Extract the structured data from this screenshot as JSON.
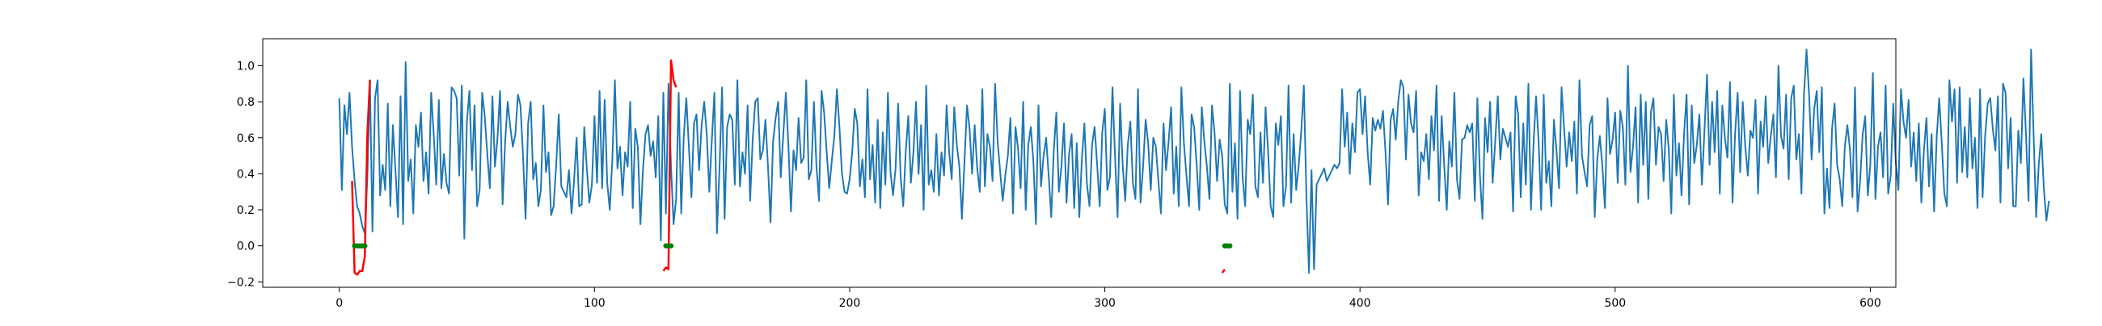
{
  "chart_data": {
    "type": "line",
    "title": "",
    "xlabel": "",
    "ylabel": "",
    "xlim": [
      -30,
      610
    ],
    "ylim": [
      -0.23,
      1.15
    ],
    "grid": false,
    "legend": "none",
    "x_ticks": [
      0,
      100,
      200,
      300,
      400,
      500,
      600
    ],
    "y_ticks": [
      -0.2,
      0.0,
      0.2,
      0.4,
      0.6,
      0.8,
      1.0
    ],
    "x_tick_labels": [
      "0",
      "100",
      "200",
      "300",
      "400",
      "500",
      "600"
    ],
    "y_tick_labels": [
      "−0.2",
      "0.0",
      "0.2",
      "0.4",
      "0.6",
      "0.8",
      "1.0"
    ],
    "series": [
      {
        "color": "#1f77b4",
        "x_start": 0,
        "x_step": 1,
        "values": [
          0.82,
          0.31,
          0.78,
          0.62,
          0.85,
          0.55,
          0.36,
          0.22,
          0.18,
          0.11,
          0.07,
          0.38,
          0.92,
          0.08,
          0.82,
          0.92,
          0.28,
          0.45,
          0.31,
          0.79,
          0.22,
          0.67,
          0.42,
          0.16,
          0.83,
          0.12,
          1.02,
          0.36,
          0.48,
          0.18,
          0.67,
          0.55,
          0.74,
          0.36,
          0.52,
          0.29,
          0.85,
          0.62,
          0.34,
          0.81,
          0.32,
          0.51,
          0.35,
          0.29,
          0.88,
          0.86,
          0.82,
          0.39,
          0.89,
          0.04,
          0.69,
          0.86,
          0.42,
          0.78,
          0.22,
          0.31,
          0.85,
          0.72,
          0.51,
          0.32,
          0.83,
          0.44,
          0.6,
          0.86,
          0.23,
          0.58,
          0.8,
          0.66,
          0.55,
          0.62,
          0.84,
          0.78,
          0.5,
          0.15,
          0.68,
          0.8,
          0.37,
          0.46,
          0.22,
          0.31,
          0.78,
          0.41,
          0.52,
          0.17,
          0.22,
          0.45,
          0.73,
          0.33,
          0.3,
          0.27,
          0.42,
          0.18,
          0.36,
          0.6,
          0.22,
          0.23,
          0.66,
          0.43,
          0.24,
          0.34,
          0.72,
          0.35,
          0.86,
          0.32,
          0.81,
          0.35,
          0.2,
          0.48,
          0.92,
          0.43,
          0.55,
          0.28,
          0.52,
          0.44,
          0.8,
          0.21,
          0.65,
          0.55,
          0.12,
          0.42,
          0.62,
          0.67,
          0.5,
          0.58,
          0.38,
          0.72,
          0.03,
          0.85,
          0.18,
          0.9,
          0.44,
          0.12,
          0.26,
          0.85,
          0.18,
          0.61,
          0.82,
          0.55,
          0.27,
          0.68,
          0.73,
          0.42,
          0.67,
          0.8,
          0.62,
          0.3,
          0.59,
          0.85,
          0.07,
          0.43,
          0.88,
          0.15,
          0.66,
          0.73,
          0.7,
          0.34,
          0.92,
          0.33,
          0.52,
          0.4,
          0.78,
          0.25,
          0.59,
          0.8,
          0.82,
          0.48,
          0.53,
          0.7,
          0.44,
          0.13,
          0.58,
          0.71,
          0.8,
          0.38,
          0.62,
          0.85,
          0.56,
          0.19,
          0.53,
          0.42,
          0.71,
          0.46,
          0.49,
          0.92,
          0.37,
          0.42,
          0.8,
          0.44,
          0.25,
          0.86,
          0.74,
          0.52,
          0.32,
          0.47,
          0.61,
          0.87,
          0.66,
          0.4,
          0.3,
          0.29,
          0.37,
          0.52,
          0.76,
          0.68,
          0.33,
          0.48,
          0.27,
          0.87,
          0.37,
          0.56,
          0.24,
          0.7,
          0.21,
          0.63,
          0.34,
          0.85,
          0.41,
          0.28,
          0.43,
          0.79,
          0.38,
          0.22,
          0.53,
          0.72,
          0.35,
          0.52,
          0.8,
          0.4,
          0.67,
          0.2,
          0.89,
          0.34,
          0.42,
          0.3,
          0.62,
          0.28,
          0.52,
          0.39,
          0.78,
          0.52,
          0.37,
          0.77,
          0.56,
          0.44,
          0.15,
          0.47,
          0.78,
          0.65,
          0.4,
          0.67,
          0.43,
          0.3,
          0.87,
          0.33,
          0.62,
          0.55,
          0.36,
          0.9,
          0.58,
          0.41,
          0.25,
          0.39,
          0.5,
          0.71,
          0.18,
          0.66,
          0.54,
          0.32,
          0.8,
          0.2,
          0.56,
          0.66,
          0.47,
          0.12,
          0.78,
          0.33,
          0.5,
          0.6,
          0.39,
          0.16,
          0.53,
          0.74,
          0.3,
          0.44,
          0.68,
          0.24,
          0.51,
          0.62,
          0.21,
          0.57,
          0.16,
          0.48,
          0.68,
          0.34,
          0.22,
          0.56,
          0.66,
          0.45,
          0.22,
          0.63,
          0.76,
          0.31,
          0.38,
          0.88,
          0.5,
          0.16,
          0.79,
          0.45,
          0.25,
          0.56,
          0.69,
          0.35,
          0.26,
          0.87,
          0.24,
          0.44,
          0.7,
          0.57,
          0.31,
          0.6,
          0.55,
          0.36,
          0.18,
          0.68,
          0.42,
          0.58,
          0.77,
          0.29,
          0.55,
          0.22,
          0.88,
          0.57,
          0.39,
          0.22,
          0.73,
          0.66,
          0.45,
          0.2,
          0.77,
          0.58,
          0.44,
          0.26,
          0.78,
          0.63,
          0.36,
          0.59,
          0.5,
          0.23,
          0.18,
          0.9,
          0.3,
          0.57,
          0.15,
          0.86,
          0.38,
          0.22,
          0.7,
          0.62,
          0.84,
          0.33,
          0.27,
          0.63,
          0.35,
          0.77,
          0.52,
          0.22,
          0.16,
          0.68,
          0.56,
          0.72,
          0.22,
          0.33,
          0.89,
          0.24,
          0.62,
          0.31,
          0.45,
          0.64,
          0.89,
          0.28,
          -0.15,
          0.42,
          -0.13,
          0.34,
          0.37,
          0.4,
          0.43,
          0.36,
          0.39,
          0.42,
          0.45,
          0.43,
          0.46,
          0.87,
          0.55,
          0.74,
          0.4,
          0.68,
          0.52,
          0.85,
          0.87,
          0.62,
          0.83,
          0.52,
          0.34,
          0.71,
          0.64,
          0.7,
          0.65,
          0.75,
          0.52,
          0.23,
          0.7,
          0.76,
          0.59,
          0.8,
          0.92,
          0.88,
          0.48,
          0.84,
          0.68,
          0.63,
          0.86,
          0.28,
          0.52,
          0.47,
          0.62,
          0.37,
          0.72,
          0.53,
          0.89,
          0.25,
          0.72,
          0.45,
          0.2,
          0.58,
          0.44,
          0.85,
          0.37,
          0.26,
          0.59,
          0.6,
          0.67,
          0.63,
          0.68,
          0.25,
          0.82,
          0.39,
          0.15,
          0.71,
          0.52,
          0.8,
          0.35,
          0.58,
          0.83,
          0.48,
          0.65,
          0.6,
          0.55,
          0.63,
          0.19,
          0.83,
          0.73,
          0.27,
          0.68,
          0.34,
          0.9,
          0.2,
          0.56,
          0.83,
          0.58,
          0.2,
          0.84,
          0.35,
          0.47,
          0.22,
          0.7,
          0.53,
          0.32,
          0.88,
          0.65,
          0.44,
          0.63,
          0.47,
          0.69,
          0.29,
          0.92,
          0.5,
          0.41,
          0.33,
          0.67,
          0.72,
          0.16,
          0.48,
          0.61,
          0.44,
          0.21,
          0.82,
          0.51,
          0.59,
          0.74,
          0.35,
          0.75,
          0.66,
          0.34,
          1.0,
          0.41,
          0.55,
          0.77,
          0.24,
          0.84,
          0.45,
          0.8,
          0.26,
          0.74,
          0.82,
          0.45,
          0.66,
          0.62,
          0.36,
          0.7,
          0.54,
          0.18,
          0.84,
          0.39,
          0.57,
          0.28,
          0.62,
          0.84,
          0.23,
          0.78,
          0.46,
          0.56,
          0.73,
          0.34,
          0.64,
          0.95,
          0.45,
          0.8,
          0.52,
          0.86,
          0.29,
          0.78,
          0.6,
          0.49,
          0.91,
          0.24,
          0.62,
          0.85,
          0.41,
          0.8,
          0.55,
          0.39,
          0.64,
          0.6,
          0.81,
          0.29,
          0.69,
          0.55,
          0.83,
          0.46,
          0.61,
          0.73,
          0.38,
          1.0,
          0.61,
          0.54,
          0.84,
          0.37,
          0.82,
          0.89,
          0.48,
          0.62,
          0.29,
          0.84,
          1.09,
          0.84,
          0.48,
          0.76,
          0.86,
          0.52,
          0.88,
          0.18,
          0.43,
          0.21,
          0.65,
          0.79,
          0.45,
          0.37,
          0.22,
          0.55,
          0.67,
          0.54,
          0.27,
          0.88,
          0.19,
          0.36,
          0.62,
          0.72,
          0.28,
          0.45,
          0.96,
          0.26,
          0.55,
          0.63,
          0.38,
          0.89,
          0.29,
          0.39,
          0.79,
          0.46,
          0.31,
          0.87,
          0.69,
          0.6,
          0.81,
          0.44,
          0.63,
          0.36,
          0.68,
          0.24,
          0.53,
          0.71,
          0.33,
          0.62,
          0.19,
          0.6,
          0.82,
          0.57,
          0.29,
          0.22,
          0.92,
          0.69,
          0.87,
          0.35,
          0.88,
          0.41,
          0.66,
          0.38,
          0.82,
          0.43,
          0.6,
          0.21,
          0.87,
          0.27,
          0.61,
          0.79,
          0.82,
          0.65,
          0.53,
          0.83,
          0.24,
          0.9,
          0.85,
          0.43,
          0.71,
          0.22,
          0.22,
          0.64,
          0.46,
          0.93,
          0.62,
          0.25,
          1.09,
          0.61,
          0.16,
          0.45,
          0.62,
          0.32,
          0.14,
          0.25
        ]
      }
    ],
    "highlights": [
      {
        "color": "#ff0000",
        "x": [
          5,
          6,
          7,
          8,
          9,
          10,
          11,
          12
        ],
        "y": [
          0.36,
          -0.15,
          -0.16,
          -0.14,
          -0.14,
          -0.06,
          0.62,
          0.92
        ]
      },
      {
        "color": "#ff0000",
        "x": [
          127,
          128,
          129,
          130,
          131,
          132
        ],
        "y": [
          -0.14,
          -0.12,
          -0.13,
          1.03,
          0.92,
          0.88
        ]
      },
      {
        "color": "#ff0000",
        "x": [
          346,
          347
        ],
        "y": [
          -0.15,
          -0.13
        ]
      }
    ],
    "markers": [
      {
        "color": "#008000",
        "x": [
          6,
          7,
          8,
          9,
          10
        ],
        "y": [
          0.0,
          0.0,
          0.0,
          0.0,
          0.0
        ]
      },
      {
        "color": "#008000",
        "x": [
          128,
          129,
          130
        ],
        "y": [
          0.0,
          0.0,
          0.0
        ]
      },
      {
        "color": "#008000",
        "x": [
          347,
          348,
          349
        ],
        "y": [
          0.0,
          0.0,
          0.0
        ]
      }
    ]
  }
}
